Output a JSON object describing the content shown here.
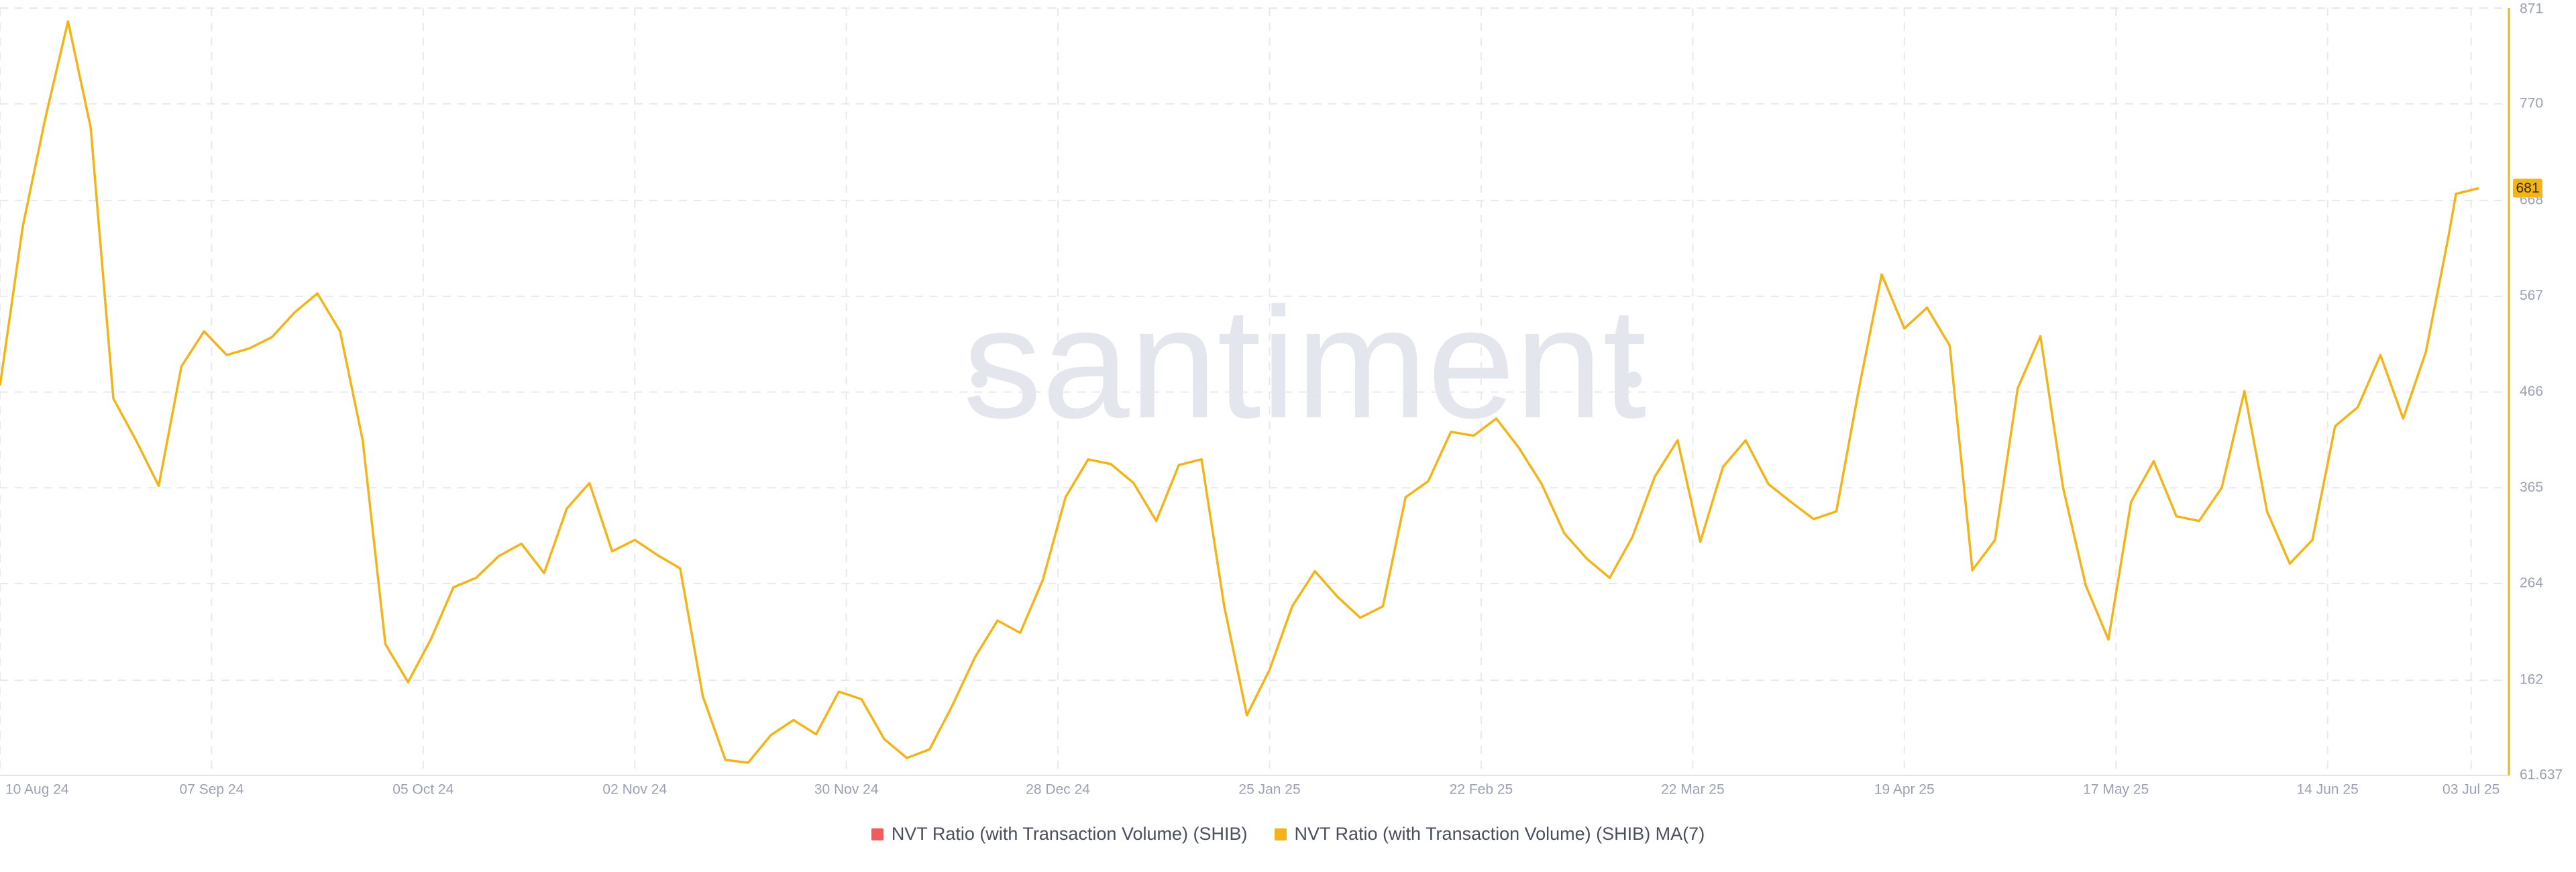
{
  "chart_data": {
    "type": "line",
    "watermark": "santiment",
    "x": [
      "2024-08-10",
      "2024-08-13",
      "2024-08-16",
      "2024-08-19",
      "2024-08-22",
      "2024-08-25",
      "2024-08-28",
      "2024-08-31",
      "2024-09-03",
      "2024-09-06",
      "2024-09-09",
      "2024-09-12",
      "2024-09-15",
      "2024-09-18",
      "2024-09-21",
      "2024-09-24",
      "2024-09-27",
      "2024-09-30",
      "2024-10-03",
      "2024-10-06",
      "2024-10-09",
      "2024-10-12",
      "2024-10-15",
      "2024-10-18",
      "2024-10-21",
      "2024-10-24",
      "2024-10-27",
      "2024-10-30",
      "2024-11-02",
      "2024-11-05",
      "2024-11-08",
      "2024-11-11",
      "2024-11-14",
      "2024-11-17",
      "2024-11-20",
      "2024-11-23",
      "2024-11-26",
      "2024-11-29",
      "2024-12-02",
      "2024-12-05",
      "2024-12-08",
      "2024-12-11",
      "2024-12-14",
      "2024-12-17",
      "2024-12-20",
      "2024-12-23",
      "2024-12-26",
      "2024-12-29",
      "2025-01-01",
      "2025-01-04",
      "2025-01-07",
      "2025-01-10",
      "2025-01-13",
      "2025-01-16",
      "2025-01-19",
      "2025-01-22",
      "2025-01-25",
      "2025-01-28",
      "2025-01-31",
      "2025-02-03",
      "2025-02-06",
      "2025-02-09",
      "2025-02-12",
      "2025-02-15",
      "2025-02-18",
      "2025-02-21",
      "2025-02-24",
      "2025-02-27",
      "2025-03-02",
      "2025-03-05",
      "2025-03-08",
      "2025-03-11",
      "2025-03-14",
      "2025-03-17",
      "2025-03-20",
      "2025-03-23",
      "2025-03-26",
      "2025-03-29",
      "2025-04-01",
      "2025-04-04",
      "2025-04-07",
      "2025-04-10",
      "2025-04-13",
      "2025-04-16",
      "2025-04-19",
      "2025-04-22",
      "2025-04-25",
      "2025-04-28",
      "2025-05-01",
      "2025-05-04",
      "2025-05-07",
      "2025-05-10",
      "2025-05-13",
      "2025-05-16",
      "2025-05-19",
      "2025-05-22",
      "2025-05-25",
      "2025-05-28",
      "2025-05-31",
      "2025-06-03",
      "2025-06-06",
      "2025-06-09",
      "2025-06-12",
      "2025-06-15",
      "2025-06-18",
      "2025-06-21",
      "2025-06-24",
      "2025-06-27",
      "2025-06-30",
      "2025-07-01",
      "2025-07-04"
    ],
    "series": [
      {
        "name": "NVT Ratio (with Transaction Volume) (SHIB)",
        "color": "#f05d5e"
      },
      {
        "name": "NVT Ratio (with Transaction Volume) (SHIB) MA(7)",
        "color": "#f2b418",
        "values": [
          473,
          640,
          755,
          857,
          745,
          459,
          415,
          367,
          493,
          530,
          505,
          512,
          524,
          550,
          570,
          530,
          415,
          200,
          160,
          205,
          260,
          270,
          293,
          306,
          275,
          343,
          370,
          298,
          310,
          294,
          280,
          145,
          78,
          75,
          104,
          120,
          105,
          150,
          142,
          100,
          80,
          89,
          135,
          186,
          225,
          212,
          268,
          355,
          395,
          390,
          370,
          330,
          389,
          395,
          240,
          125,
          173,
          240,
          277,
          250,
          228,
          240,
          355,
          372,
          424,
          420,
          438,
          407,
          369,
          317,
          290,
          270,
          313,
          377,
          415,
          308,
          387,
          415,
          369,
          350,
          332,
          340,
          470,
          590,
          533,
          555,
          515,
          278,
          310,
          470,
          525,
          365,
          262,
          205,
          350,
          393,
          335,
          330,
          365,
          467,
          340,
          285,
          310,
          430,
          450,
          505,
          438,
          508,
          630,
          675,
          681
        ]
      }
    ],
    "xlim": [
      "2024-08-10",
      "2025-07-08"
    ],
    "xticks": [
      {
        "value": "2024-08-10",
        "label": "10 Aug 24"
      },
      {
        "value": "2024-09-07",
        "label": "07 Sep 24"
      },
      {
        "value": "2024-10-05",
        "label": "05 Oct 24"
      },
      {
        "value": "2024-11-02",
        "label": "02 Nov 24"
      },
      {
        "value": "2024-11-30",
        "label": "30 Nov 24"
      },
      {
        "value": "2024-12-28",
        "label": "28 Dec 24"
      },
      {
        "value": "2025-01-25",
        "label": "25 Jan 25"
      },
      {
        "value": "2025-02-22",
        "label": "22 Feb 25"
      },
      {
        "value": "2025-03-22",
        "label": "22 Mar 25"
      },
      {
        "value": "2025-04-19",
        "label": "19 Apr 25"
      },
      {
        "value": "2025-05-17",
        "label": "17 May 25"
      },
      {
        "value": "2025-06-14",
        "label": "14 Jun 25"
      },
      {
        "value": "2025-07-03",
        "label": "03 Jul 25"
      }
    ],
    "ylim": [
      61.637,
      871
    ],
    "yticks": [
      61.637,
      162,
      264,
      365,
      466,
      567,
      668,
      770,
      871
    ],
    "grid": true
  }
}
